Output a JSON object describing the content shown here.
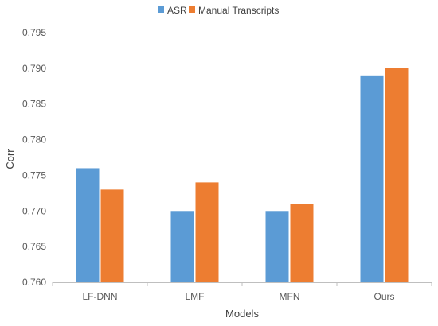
{
  "chart_data": {
    "type": "bar",
    "title": "",
    "xlabel": "Models",
    "ylabel": "Corr",
    "categories": [
      "LF-DNN",
      "LMF",
      "MFN",
      "Ours"
    ],
    "series": [
      {
        "name": "ASR",
        "values": [
          0.776,
          0.77,
          0.77,
          0.789
        ],
        "color": "#5b9bd5"
      },
      {
        "name": "Manual Transcripts",
        "values": [
          0.773,
          0.774,
          0.771,
          0.79
        ],
        "color": "#ed7d31"
      }
    ],
    "ylim": [
      0.76,
      0.795
    ],
    "yticks": [
      "0.760",
      "0.765",
      "0.770",
      "0.775",
      "0.780",
      "0.785",
      "0.790",
      "0.795"
    ],
    "grid": false,
    "legend": "top-center"
  }
}
